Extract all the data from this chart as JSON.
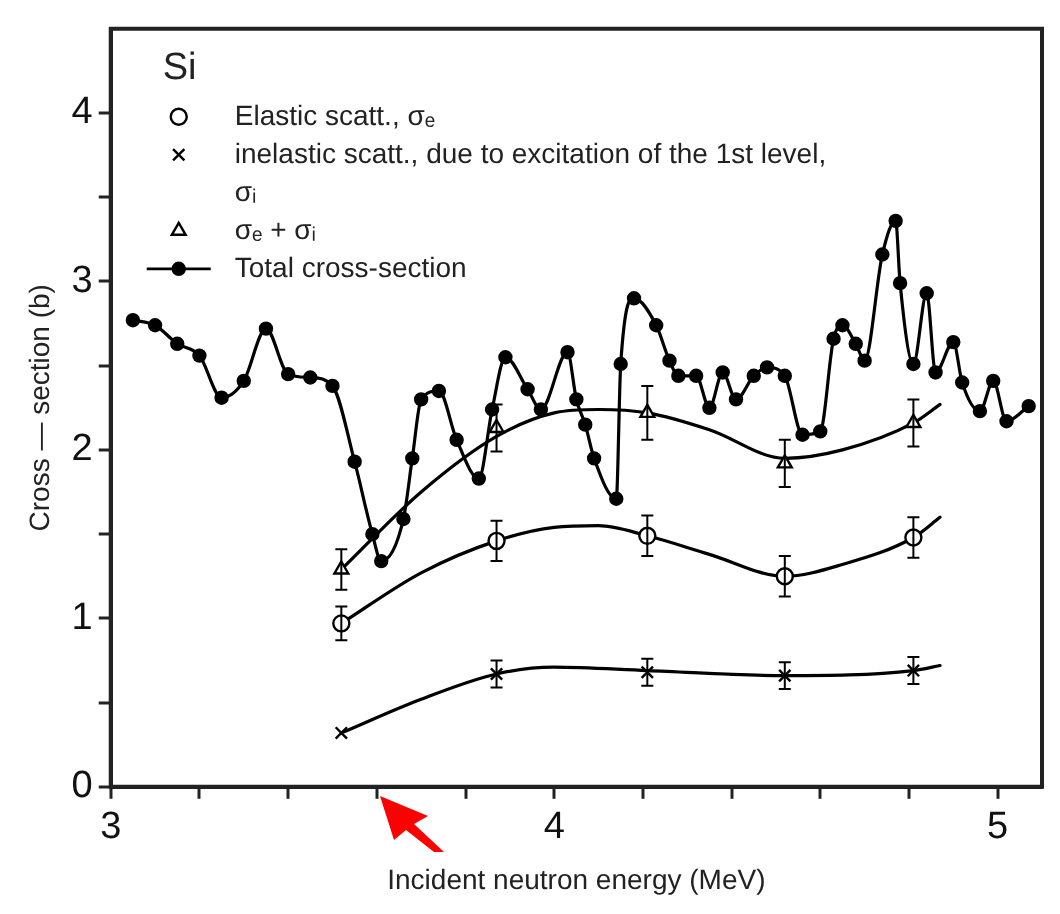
{
  "chart_data": {
    "type": "scatter",
    "xlabel": "Incident neutron energy (MeV)",
    "ylabel": "Cross — section (b)",
    "annotations": [
      "Si"
    ],
    "xlim": [
      3,
      5.1
    ],
    "ylim": [
      0,
      4.5
    ],
    "xticks": [
      3,
      {
        "value": 3.2,
        "label": null
      },
      {
        "value": 3.4,
        "label": null
      },
      {
        "value": 3.6,
        "label": null
      },
      {
        "value": 3.8,
        "label": null
      },
      4,
      {
        "value": 4.2,
        "label": null
      },
      {
        "value": 4.4,
        "label": null
      },
      {
        "value": 4.6,
        "label": null
      },
      {
        "value": 4.8,
        "label": null
      },
      5
    ],
    "yticks": [
      0,
      {
        "value": 0.5,
        "label": null
      },
      1,
      {
        "value": 1.5,
        "label": null
      },
      2,
      {
        "value": 2.5,
        "label": null
      },
      3,
      {
        "value": 3.5,
        "label": null
      },
      4
    ],
    "grid": false,
    "legend": "top left",
    "series": [
      {
        "name": "Elastic scatt., σₑ",
        "type": "scatter",
        "marker": "circle",
        "color": "#000000",
        "x": [
          3.52,
          3.87,
          4.21,
          4.52,
          4.81
        ],
        "values": [
          0.97,
          1.46,
          1.49,
          1.25,
          1.48
        ],
        "errors": [
          0.1,
          0.12,
          0.12,
          0.12,
          0.12
        ]
      },
      {
        "name": "inelastic scatt., due to excitation of the 1st level, σᵢ",
        "type": "scatter",
        "marker": "cross",
        "color": "#000000",
        "x": [
          3.52,
          3.87,
          4.21,
          4.52,
          4.81
        ],
        "values": [
          0.32,
          0.67,
          0.68,
          0.66,
          0.69
        ],
        "errors": [
          null,
          0.08,
          0.08,
          0.08,
          0.08
        ]
      },
      {
        "name": "σₑ + σᵢ",
        "type": "scatter",
        "marker": "triangle",
        "color": "#000000",
        "x": [
          3.52,
          3.87,
          4.21,
          4.52,
          4.81
        ],
        "values": [
          1.29,
          2.13,
          2.22,
          1.92,
          2.16
        ],
        "errors": [
          0.12,
          0.14,
          0.16,
          0.14,
          0.14
        ]
      },
      {
        "name": "Total cross-section",
        "type": "line",
        "marker": "circle",
        "color": "#000000",
        "x": [
          3.05,
          3.1,
          3.15,
          3.2,
          3.25,
          3.3,
          3.35,
          3.4,
          3.45,
          3.5,
          3.55,
          3.59,
          3.61,
          3.66,
          3.68,
          3.7,
          3.74,
          3.78,
          3.83,
          3.86,
          3.89,
          3.94,
          3.97,
          4.03,
          4.05,
          4.07,
          4.09,
          4.14,
          4.15,
          4.18,
          4.23,
          4.26,
          4.28,
          4.32,
          4.35,
          4.38,
          4.41,
          4.45,
          4.48,
          4.52,
          4.56,
          4.6,
          4.63,
          4.65,
          4.68,
          4.7,
          4.74,
          4.77,
          4.78,
          4.81,
          4.84,
          4.86,
          4.9,
          4.92,
          4.96,
          4.99,
          5.02,
          5.07
        ],
        "values": [
          2.77,
          2.74,
          2.63,
          2.56,
          2.31,
          2.41,
          2.72,
          2.45,
          2.43,
          2.38,
          1.93,
          1.5,
          1.34,
          1.59,
          1.95,
          2.3,
          2.35,
          2.06,
          1.83,
          2.24,
          2.55,
          2.36,
          2.24,
          2.58,
          2.3,
          2.15,
          1.95,
          1.71,
          2.51,
          2.9,
          2.74,
          2.53,
          2.44,
          2.44,
          2.25,
          2.46,
          2.3,
          2.44,
          2.49,
          2.44,
          2.09,
          2.11,
          2.66,
          2.74,
          2.63,
          2.53,
          3.16,
          3.36,
          2.99,
          2.51,
          2.93,
          2.46,
          2.64,
          2.4,
          2.23,
          2.41,
          2.17,
          2.26
        ]
      },
      {
        "type": "line",
        "marker": "none",
        "color": "#000000",
        "x": [
          3.52,
          3.7,
          3.87,
          4.0,
          4.1,
          4.21,
          4.35,
          4.52,
          4.65,
          4.81,
          4.87
        ],
        "values": [
          1.29,
          1.75,
          2.08,
          2.22,
          2.24,
          2.22,
          2.12,
          1.95,
          2.0,
          2.16,
          2.27
        ]
      },
      {
        "type": "line",
        "marker": "none",
        "color": "#000000",
        "x": [
          3.52,
          3.7,
          3.87,
          4.0,
          4.1,
          4.21,
          4.35,
          4.52,
          4.65,
          4.81,
          4.87
        ],
        "values": [
          0.97,
          1.27,
          1.46,
          1.54,
          1.55,
          1.49,
          1.38,
          1.25,
          1.32,
          1.48,
          1.6
        ]
      },
      {
        "type": "line",
        "marker": "none",
        "color": "#000000",
        "x": [
          3.52,
          3.7,
          3.87,
          4.0,
          4.21,
          4.52,
          4.81,
          4.87
        ],
        "values": [
          0.32,
          0.52,
          0.67,
          0.71,
          0.69,
          0.66,
          0.69,
          0.72
        ]
      }
    ]
  }
}
